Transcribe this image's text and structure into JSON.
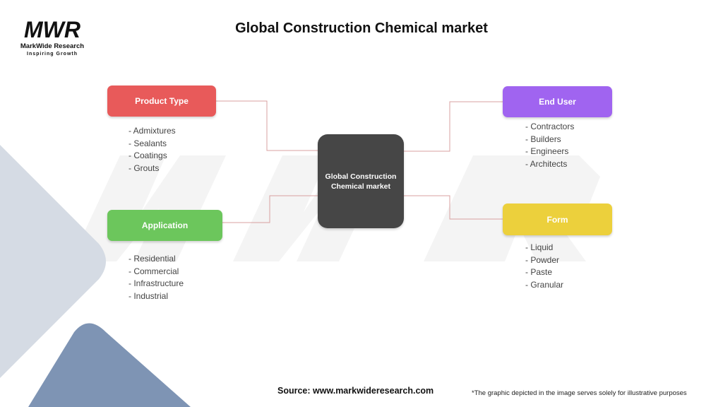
{
  "title": "Global Construction Chemical market",
  "logo": {
    "mark": "MWR",
    "name": "MarkWide Research",
    "tagline": "Inspiring Growth"
  },
  "center": {
    "label": "Global Construction Chemical market"
  },
  "categories": [
    {
      "label": "Product Type",
      "color": "#e85a5a",
      "items": [
        "- Admixtures",
        "- Sealants",
        "- Coatings",
        "- Grouts"
      ]
    },
    {
      "label": "End User",
      "color": "#a064f0",
      "items": [
        "- Contractors",
        "- Builders",
        "- Engineers",
        "- Architects"
      ]
    },
    {
      "label": "Application",
      "color": "#6cc65c",
      "items": [
        "- Residential",
        "- Commercial",
        "- Infrastructure",
        "- Industrial"
      ]
    },
    {
      "label": "Form",
      "color": "#ecd03c",
      "items": [
        "- Liquid",
        "- Powder",
        "- Paste",
        "- Granular"
      ]
    }
  ],
  "connector_color": "#d9a0a0",
  "footer": {
    "source": "Source: www.markwideresearch.com",
    "disclaimer": "*The graphic depicted in the image serves solely for illustrative purposes"
  }
}
